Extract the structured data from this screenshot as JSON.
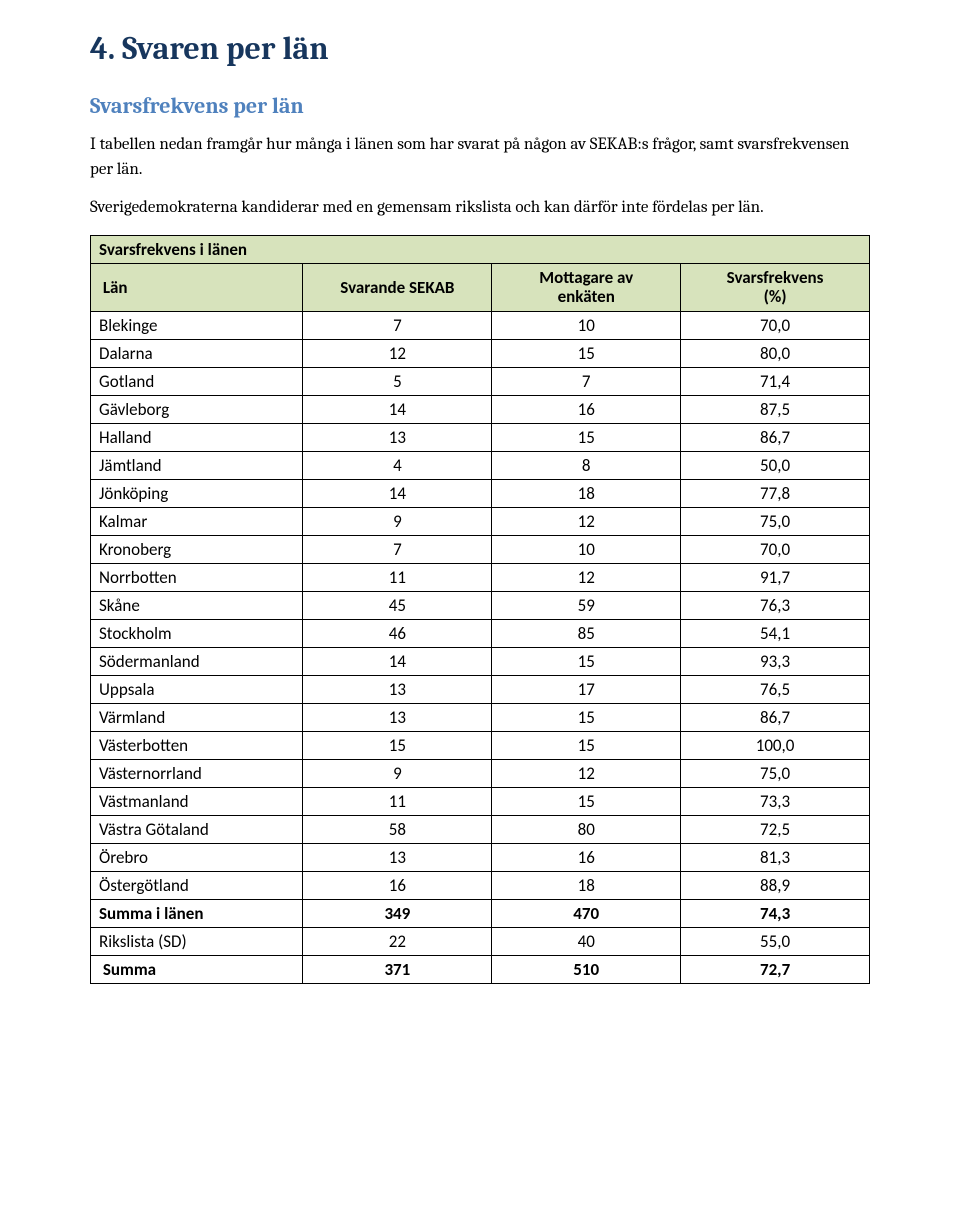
{
  "heading": "4. Svaren per län",
  "subheading": "Svarsfrekvens per län",
  "paragraph1": "I tabellen nedan framgår hur många i länen som har svarat på någon av SEKAB:s frågor, samt svarsfrekvensen per län.",
  "paragraph2": "Sverigedemokraterna kandiderar med en gemensam rikslista och kan därför inte fördelas per län.",
  "table": {
    "title": "Svarsfrekvens i länen",
    "columns": {
      "lan": "Län",
      "svarande": "Svarande SEKAB",
      "mottagare_l1": "Mottagare av",
      "mottagare_l2": "enkäten",
      "frekvens_l1": "Svarsfrekvens",
      "frekvens_l2": "(%)"
    },
    "rows": [
      {
        "lan": "Blekinge",
        "svarande": "7",
        "mottagare": "10",
        "frekvens": "70,0"
      },
      {
        "lan": "Dalarna",
        "svarande": "12",
        "mottagare": "15",
        "frekvens": "80,0"
      },
      {
        "lan": "Gotland",
        "svarande": "5",
        "mottagare": "7",
        "frekvens": "71,4"
      },
      {
        "lan": "Gävleborg",
        "svarande": "14",
        "mottagare": "16",
        "frekvens": "87,5"
      },
      {
        "lan": "Halland",
        "svarande": "13",
        "mottagare": "15",
        "frekvens": "86,7"
      },
      {
        "lan": "Jämtland",
        "svarande": "4",
        "mottagare": "8",
        "frekvens": "50,0"
      },
      {
        "lan": "Jönköping",
        "svarande": "14",
        "mottagare": "18",
        "frekvens": "77,8"
      },
      {
        "lan": "Kalmar",
        "svarande": "9",
        "mottagare": "12",
        "frekvens": "75,0"
      },
      {
        "lan": "Kronoberg",
        "svarande": "7",
        "mottagare": "10",
        "frekvens": "70,0"
      },
      {
        "lan": "Norrbotten",
        "svarande": "11",
        "mottagare": "12",
        "frekvens": "91,7"
      },
      {
        "lan": "Skåne",
        "svarande": "45",
        "mottagare": "59",
        "frekvens": "76,3"
      },
      {
        "lan": "Stockholm",
        "svarande": "46",
        "mottagare": "85",
        "frekvens": "54,1"
      },
      {
        "lan": "Södermanland",
        "svarande": "14",
        "mottagare": "15",
        "frekvens": "93,3"
      },
      {
        "lan": "Uppsala",
        "svarande": "13",
        "mottagare": "17",
        "frekvens": "76,5"
      },
      {
        "lan": "Värmland",
        "svarande": "13",
        "mottagare": "15",
        "frekvens": "86,7"
      },
      {
        "lan": "Västerbotten",
        "svarande": "15",
        "mottagare": "15",
        "frekvens": "100,0"
      },
      {
        "lan": "Västernorrland",
        "svarande": "9",
        "mottagare": "12",
        "frekvens": "75,0"
      },
      {
        "lan": "Västmanland",
        "svarande": "11",
        "mottagare": "15",
        "frekvens": "73,3"
      },
      {
        "lan": "Västra Götaland",
        "svarande": "58",
        "mottagare": "80",
        "frekvens": "72,5"
      },
      {
        "lan": "Örebro",
        "svarande": "13",
        "mottagare": "16",
        "frekvens": "81,3"
      },
      {
        "lan": "Östergötland",
        "svarande": "16",
        "mottagare": "18",
        "frekvens": "88,9"
      }
    ],
    "summary": [
      {
        "lan": "Summa i länen",
        "svarande": "349",
        "mottagare": "470",
        "frekvens": "74,3",
        "bold": true
      },
      {
        "lan": "Rikslista (SD)",
        "svarande": "22",
        "mottagare": "40",
        "frekvens": "55,0",
        "bold": false
      },
      {
        "lan": "Summa",
        "svarande": "371",
        "mottagare": "510",
        "frekvens": "72,7",
        "bold": true,
        "indent": true
      }
    ]
  }
}
